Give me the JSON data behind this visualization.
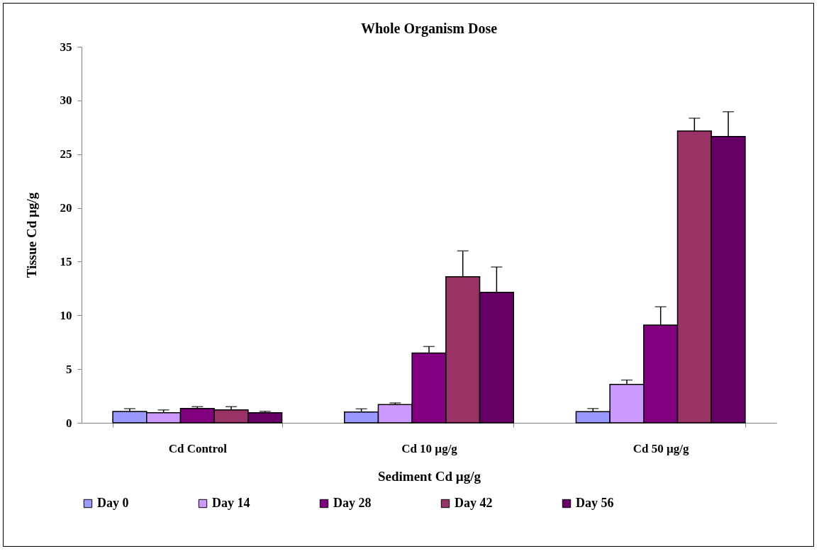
{
  "chart_data": {
    "type": "bar",
    "title": "Whole Organism Dose",
    "xlabel": "Sediment Cd µg/g",
    "ylabel": "Tissue Cd µg/g",
    "categories": [
      "Cd Control",
      "Cd 10 µg/g",
      "Cd 50 µg/g"
    ],
    "series": [
      {
        "name": "Day 0",
        "color": "#9999ff",
        "values": [
          1.05,
          1.0,
          1.03
        ],
        "errors": [
          0.27,
          0.3,
          0.3
        ]
      },
      {
        "name": "Day 14",
        "color": "#cc99ff",
        "values": [
          0.94,
          1.7,
          3.58
        ],
        "errors": [
          0.26,
          0.15,
          0.4
        ]
      },
      {
        "name": "Day 28",
        "color": "#800080",
        "values": [
          1.34,
          6.5,
          9.1
        ],
        "errors": [
          0.16,
          0.6,
          1.7
        ]
      },
      {
        "name": "Day 42",
        "color": "#993366",
        "values": [
          1.2,
          13.6,
          27.15
        ],
        "errors": [
          0.3,
          2.4,
          1.2
        ]
      },
      {
        "name": "Day 56",
        "color": "#660066",
        "values": [
          0.94,
          12.15,
          26.65
        ],
        "errors": [
          0.13,
          2.35,
          2.3
        ]
      }
    ],
    "ylim": [
      0,
      35
    ],
    "yticks": [
      0,
      5,
      10,
      15,
      20,
      25,
      30,
      35
    ],
    "grid": false,
    "legend": "bottom"
  }
}
